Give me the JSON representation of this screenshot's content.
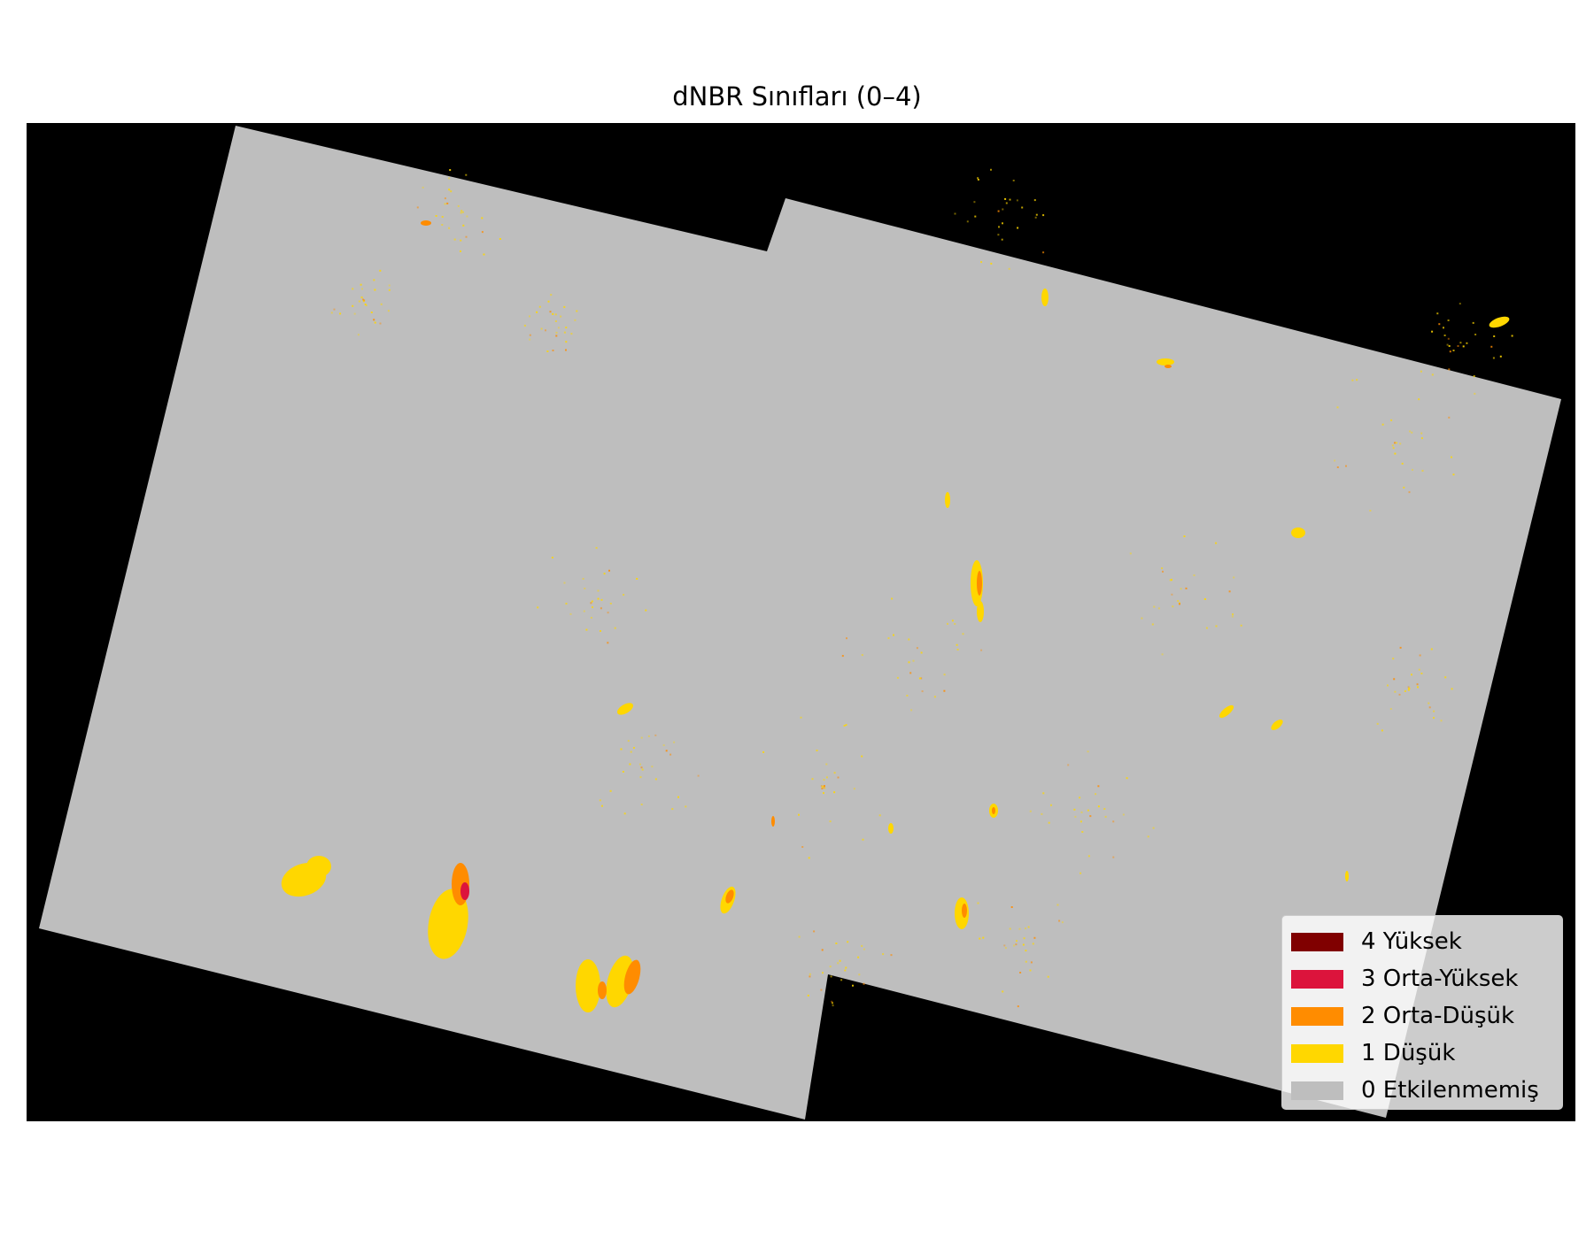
{
  "title": "dNBR Sınıfları (0–4)",
  "map": {
    "background_color": "#000000",
    "footprint_color": "#bebebe"
  },
  "legend": {
    "items": [
      {
        "label": "4 Yüksek",
        "color": "#800000"
      },
      {
        "label": "3 Orta-Yüksek",
        "color": "#dc143c"
      },
      {
        "label": "2 Orta-Düşük",
        "color": "#ff8c00"
      },
      {
        "label": "1 Düşük",
        "color": "#ffd700"
      },
      {
        "label": "0 Etkilenmemiş",
        "color": "#bebebe"
      }
    ]
  }
}
